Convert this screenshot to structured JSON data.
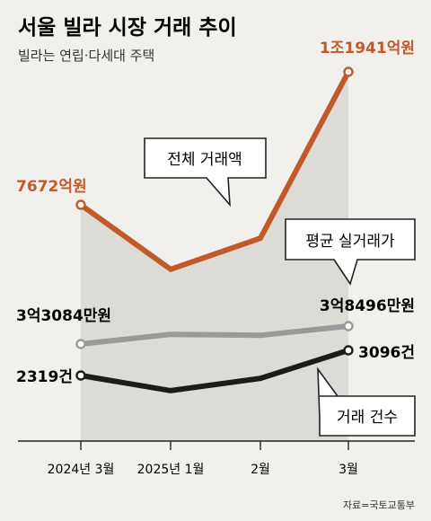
{
  "header": {
    "title": "서울 빌라 시장 거래 추이",
    "subtitle": "빌라는 연립·다세대 주택"
  },
  "source": "자료=국토교통부",
  "colors": {
    "total_amount": "#c15a2b",
    "avg_price": "#999999",
    "count": "#1c1c1c",
    "area_fill": "#dcdbd6",
    "background": "#f1f0ec"
  },
  "chart_data": {
    "type": "line",
    "categories": [
      "2024년 3월",
      "2025년 1월",
      "2월",
      "3월"
    ],
    "series": [
      {
        "key": "total_amount",
        "name": "전체 거래액",
        "unit": "억원",
        "values": [
          7672,
          5600,
          6600,
          11941
        ],
        "labels": {
          "first": "7672억원",
          "last": "1조1941억원"
        },
        "filled_area": true
      },
      {
        "key": "avg_price",
        "name": "평균 실거래가",
        "unit": "만원",
        "values": [
          33084,
          36000,
          35700,
          38496
        ],
        "labels": {
          "first": "3억3084만원",
          "last": "3억8496만원"
        }
      },
      {
        "key": "count",
        "name": "거래 건수",
        "unit": "건",
        "values": [
          2319,
          1850,
          2230,
          3096
        ],
        "labels": {
          "first": "2319건",
          "last": "3096건"
        }
      }
    ],
    "grid": false,
    "legend": "callouts"
  }
}
